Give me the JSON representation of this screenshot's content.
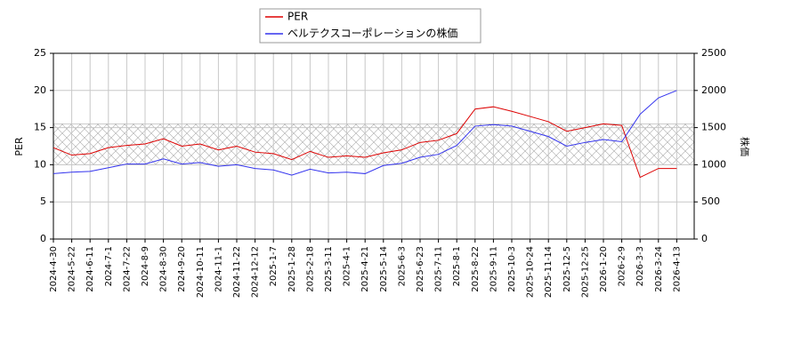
{
  "chart_data": {
    "type": "line",
    "ylabel": "PER",
    "y2label": "株価",
    "x": [
      "2024-4-30",
      "2024-5-22",
      "2024-6-11",
      "2024-7-1",
      "2024-7-22",
      "2024-8-9",
      "2024-8-30",
      "2024-9-20",
      "2024-10-11",
      "2024-11-1",
      "2024-11-22",
      "2024-12-12",
      "2025-1-7",
      "2025-1-28",
      "2025-2-18",
      "2025-3-11",
      "2025-4-1",
      "2025-4-21",
      "2025-5-14",
      "2025-6-3",
      "2025-6-23",
      "2025-7-11",
      "2025-8-1",
      "2025-8-22",
      "2025-9-11",
      "2025-10-3",
      "2025-10-24",
      "2025-11-14",
      "2025-12-5",
      "2025-12-25",
      "2026-1-20",
      "2026-2-9",
      "2026-3-3",
      "2026-3-24",
      "2026-4-13"
    ],
    "series": [
      {
        "name": "PER",
        "color": "#dd0000",
        "values": [
          12.3,
          11.3,
          11.5,
          12.3,
          12.6,
          12.8,
          13.5,
          12.5,
          12.8,
          12.0,
          12.5,
          11.7,
          11.5,
          10.7,
          11.8,
          11.0,
          11.2,
          11.0,
          11.6,
          12.0,
          13.0,
          13.3,
          14.2,
          17.5,
          17.8,
          17.2,
          16.5,
          15.8,
          14.5,
          15.0,
          15.5,
          15.3,
          8.3,
          9.5,
          9.5
        ]
      },
      {
        "name": "ベルテクスコーポレーションの株価",
        "color": "#3333ee",
        "axis": "y2",
        "values": [
          880,
          900,
          910,
          960,
          1010,
          1010,
          1080,
          1010,
          1030,
          980,
          1000,
          950,
          930,
          860,
          940,
          890,
          900,
          880,
          990,
          1020,
          1100,
          1140,
          1260,
          1520,
          1540,
          1520,
          1450,
          1380,
          1250,
          1300,
          1340,
          1310,
          1680,
          1900,
          2000
        ]
      }
    ],
    "ylim": [
      0,
      25
    ],
    "yticks": [
      0,
      5,
      10,
      15,
      20,
      25
    ],
    "y2lim": [
      0,
      2500
    ],
    "y2ticks": [
      0,
      500,
      1000,
      1500,
      2000,
      2500
    ],
    "shaded_range": [
      10,
      15.5
    ],
    "grid": true
  }
}
